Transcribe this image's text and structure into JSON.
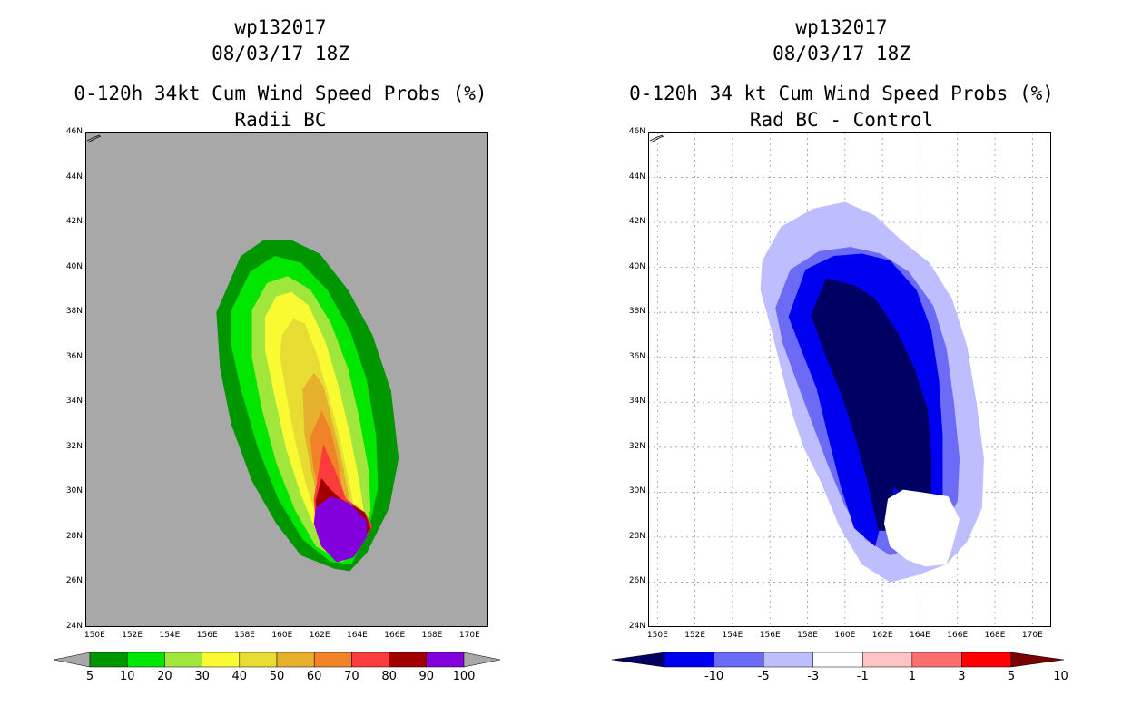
{
  "figure": {
    "left": {
      "title_storm": "wp132017",
      "title_time": "08/03/17 18Z",
      "title_product": "0-120h 34kt Cum Wind Speed Probs (%)",
      "title_sub": "Radii BC",
      "colorbar": {
        "labels": [
          "5",
          "10",
          "20",
          "30",
          "40",
          "50",
          "60",
          "70",
          "80",
          "90",
          "100"
        ],
        "colors": [
          "#009600",
          "#00e600",
          "#a0e63c",
          "#fafa32",
          "#e6dc32",
          "#e6af2d",
          "#f08228",
          "#fa3c3c",
          "#a00000",
          "#8200dc"
        ],
        "end_color": "#a8a8a8"
      }
    },
    "right": {
      "title_storm": "wp132017",
      "title_time": "08/03/17 18Z",
      "title_product": "0-120h 34 kt Cum Wind Speed Probs (%)",
      "title_sub": "Rad BC - Control",
      "colorbar": {
        "labels": [
          "-10",
          "-5",
          "-3",
          "-1",
          "1",
          "3",
          "5",
          "10"
        ],
        "colors": [
          "#0000f0",
          "#6b6bf5",
          "#bebeff",
          "#ffffff",
          "#ffc3c3",
          "#fa6e6e",
          "#ff0000"
        ],
        "low_end_color": "#000064",
        "high_end_color": "#780000"
      }
    }
  },
  "axes": {
    "ytick_labels": [
      "24N",
      "26N",
      "28N",
      "30N",
      "32N",
      "34N",
      "36N",
      "38N",
      "40N",
      "42N",
      "44N",
      "46N"
    ],
    "xtick_labels": [
      "150E",
      "152E",
      "154E",
      "156E",
      "158E",
      "160E",
      "162E",
      "164E",
      "166E",
      "168E",
      "170E"
    ]
  },
  "chart_data": [
    {
      "type": "heatmap",
      "subtype": "filled-contour",
      "title": "0-120h 34kt Cum Wind Speed Probs (%)",
      "subtitle": "Radii BC",
      "xlabel": "",
      "ylabel": "",
      "xlim": [
        149.5,
        171.0
      ],
      "ylim": [
        24,
        46
      ],
      "grid": false,
      "background_color": "#a8a8a8",
      "levels": [
        {
          "min": 5,
          "color": "#009600",
          "polygon": [
            [
              156.5,
              38
            ],
            [
              157.8,
              40.5
            ],
            [
              159,
              41.2
            ],
            [
              160.5,
              41.2
            ],
            [
              162,
              40.6
            ],
            [
              163.5,
              39
            ],
            [
              164.8,
              37
            ],
            [
              165.8,
              34.5
            ],
            [
              166.2,
              31.5
            ],
            [
              165.7,
              29.3
            ],
            [
              164.5,
              27.3
            ],
            [
              163.6,
              26.5
            ],
            [
              162.8,
              26.6
            ],
            [
              161,
              27.2
            ],
            [
              159.7,
              28.6
            ],
            [
              158.4,
              30.5
            ],
            [
              157.3,
              33
            ],
            [
              156.7,
              35.5
            ]
          ]
        },
        {
          "min": 10,
          "color": "#00e600",
          "polygon": [
            [
              157.3,
              38.1
            ],
            [
              158.3,
              39.8
            ],
            [
              159.6,
              40.5
            ],
            [
              161,
              40.2
            ],
            [
              162.4,
              39
            ],
            [
              163.6,
              37.2
            ],
            [
              164.5,
              35
            ],
            [
              165,
              32.5
            ],
            [
              165.1,
              30.2
            ],
            [
              164.6,
              28.3
            ],
            [
              163.7,
              26.8
            ],
            [
              162.6,
              26.9
            ],
            [
              161.1,
              27.9
            ],
            [
              159.8,
              29.7
            ],
            [
              158.7,
              32
            ],
            [
              157.8,
              34.6
            ],
            [
              157.3,
              36.5
            ]
          ]
        },
        {
          "min": 20,
          "color": "#a0e63c",
          "polygon": [
            [
              158.4,
              38.1
            ],
            [
              159.2,
              39.3
            ],
            [
              160.3,
              39.6
            ],
            [
              161.5,
              39
            ],
            [
              162.6,
              37.5
            ],
            [
              163.5,
              35.5
            ],
            [
              164.1,
              33.3
            ],
            [
              164.6,
              31
            ],
            [
              164.7,
              29.2
            ],
            [
              164.1,
              27.5
            ],
            [
              163.2,
              26.9
            ],
            [
              161.8,
              27.6
            ],
            [
              160.7,
              29.2
            ],
            [
              159.7,
              31.3
            ],
            [
              158.9,
              33.8
            ],
            [
              158.4,
              36
            ]
          ]
        },
        {
          "min": 30,
          "color": "#fafa32",
          "polygon": [
            [
              159.1,
              37.8
            ],
            [
              159.7,
              38.7
            ],
            [
              160.5,
              38.9
            ],
            [
              161.4,
              38.3
            ],
            [
              162.3,
              36.7
            ],
            [
              163,
              34.7
            ],
            [
              163.6,
              32.6
            ],
            [
              164.1,
              30.5
            ],
            [
              164.4,
              28.8
            ],
            [
              163.9,
              27.3
            ],
            [
              163,
              27
            ],
            [
              161.9,
              28.1
            ],
            [
              161,
              29.9
            ],
            [
              160.2,
              32
            ],
            [
              159.6,
              34.3
            ],
            [
              159.1,
              36.3
            ]
          ]
        },
        {
          "min": 40,
          "color": "#e6dc32",
          "polygon": [
            [
              160,
              37
            ],
            [
              160.6,
              37.7
            ],
            [
              161.2,
              37.5
            ],
            [
              161.8,
              36.2
            ],
            [
              162.4,
              34.5
            ],
            [
              163,
              32.6
            ],
            [
              163.5,
              30.7
            ],
            [
              163.9,
              29
            ],
            [
              163.6,
              27.5
            ],
            [
              162.9,
              27.1
            ],
            [
              162,
              28.5
            ],
            [
              161.3,
              30.3
            ],
            [
              160.7,
              32.3
            ],
            [
              160.2,
              34.5
            ],
            [
              159.9,
              36
            ]
          ]
        },
        {
          "min": 50,
          "color": "#e6af2d",
          "polygon": [
            [
              161.1,
              34.6
            ],
            [
              161.7,
              35.3
            ],
            [
              162.2,
              34.7
            ],
            [
              162.7,
              33
            ],
            [
              163.2,
              31.3
            ],
            [
              163.6,
              29.6
            ],
            [
              163.3,
              27.8
            ],
            [
              162.7,
              27.6
            ],
            [
              162.1,
              29
            ],
            [
              161.6,
              30.8
            ],
            [
              161.2,
              32.6
            ]
          ]
        },
        {
          "min": 60,
          "color": "#f08228",
          "polygon": [
            [
              161.5,
              32.4
            ],
            [
              162.1,
              33.6
            ],
            [
              162.6,
              32.7
            ],
            [
              163,
              31.2
            ],
            [
              163.3,
              29.6
            ],
            [
              163.1,
              28.2
            ],
            [
              162.6,
              28.3
            ],
            [
              162.1,
              29.6
            ],
            [
              161.7,
              31
            ]
          ]
        },
        {
          "min": 70,
          "color": "#fa3c3c",
          "polygon": [
            [
              161.7,
              29.7
            ],
            [
              162.2,
              32.1
            ],
            [
              162.8,
              31
            ],
            [
              163.4,
              29.7
            ],
            [
              164.4,
              29.1
            ],
            [
              164.8,
              28.5
            ],
            [
              164.2,
              27.6
            ],
            [
              163.3,
              27.1
            ],
            [
              162.3,
              27.7
            ],
            [
              161.8,
              28.6
            ]
          ]
        },
        {
          "min": 80,
          "color": "#a00000",
          "polygon": [
            [
              161.8,
              29.6
            ],
            [
              162.1,
              30.6
            ],
            [
              162.6,
              30.1
            ],
            [
              163.1,
              29.7
            ],
            [
              164.4,
              29.1
            ],
            [
              164.7,
              28.4
            ],
            [
              164,
              27.4
            ],
            [
              163.3,
              27.1
            ],
            [
              162.3,
              27.6
            ],
            [
              161.9,
              28.5
            ]
          ]
        },
        {
          "min": 90,
          "color": "#8200dc",
          "polygon": [
            [
              161.8,
              29.3
            ],
            [
              162.6,
              29.8
            ],
            [
              163.6,
              29.5
            ],
            [
              164.5,
              28.7
            ],
            [
              164.5,
              28
            ],
            [
              163.8,
              27.1
            ],
            [
              162.9,
              26.9
            ],
            [
              162.1,
              27.6
            ],
            [
              161.7,
              28.6
            ]
          ]
        }
      ]
    },
    {
      "type": "heatmap",
      "subtype": "filled-contour",
      "title": "0-120h 34 kt Cum Wind Speed Probs (%)",
      "subtitle": "Rad BC - Control",
      "xlabel": "",
      "ylabel": "",
      "xlim": [
        149.5,
        171.0
      ],
      "ylim": [
        24,
        46
      ],
      "grid": true,
      "background_color": "#ffffff",
      "levels": [
        {
          "range": [
            -3,
            -1
          ],
          "color": "#bebeff",
          "polygon": [
            [
              155.6,
              40.3
            ],
            [
              156.6,
              41.8
            ],
            [
              158.3,
              42.6
            ],
            [
              160,
              42.9
            ],
            [
              161.6,
              42.3
            ],
            [
              163,
              41.2
            ],
            [
              164.5,
              40.2
            ],
            [
              165.7,
              38.6
            ],
            [
              166.5,
              36.5
            ],
            [
              167,
              34
            ],
            [
              167.4,
              31.5
            ],
            [
              167.3,
              29.3
            ],
            [
              166.5,
              27.8
            ],
            [
              165.4,
              26.8
            ],
            [
              163.8,
              26.3
            ],
            [
              162.4,
              26
            ],
            [
              160.9,
              26.8
            ],
            [
              159.7,
              28.5
            ],
            [
              158.7,
              30.5
            ],
            [
              157.8,
              32
            ],
            [
              157.2,
              33.5
            ],
            [
              156.6,
              35.5
            ],
            [
              156,
              37.5
            ],
            [
              155.5,
              39
            ]
          ]
        },
        {
          "range": [
            -5,
            -3
          ],
          "color": "#6b6bf5",
          "polygon": [
            [
              156.3,
              38.2
            ],
            [
              157.1,
              39.9
            ],
            [
              158.6,
              40.7
            ],
            [
              160.3,
              40.9
            ],
            [
              161.9,
              40.6
            ],
            [
              163.4,
              39.8
            ],
            [
              164.7,
              38.3
            ],
            [
              165.4,
              36.4
            ],
            [
              165.8,
              34
            ],
            [
              166.1,
              31.5
            ],
            [
              166,
              29.6
            ],
            [
              165.1,
              28.2
            ],
            [
              163.9,
              27.6
            ],
            [
              162.4,
              27.2
            ],
            [
              161.1,
              27.9
            ],
            [
              160,
              29.4
            ],
            [
              159.1,
              31.2
            ],
            [
              158.2,
              33.2
            ],
            [
              157.4,
              35
            ],
            [
              156.7,
              36.6
            ]
          ]
        },
        {
          "range": [
            -10,
            -5
          ],
          "color": "#0000f0",
          "polygon": [
            [
              157,
              37.8
            ],
            [
              157.9,
              39.9
            ],
            [
              159.4,
              40.5
            ],
            [
              160.9,
              40.6
            ],
            [
              162.4,
              40.3
            ],
            [
              163.8,
              39
            ],
            [
              164.6,
              37.2
            ],
            [
              165,
              35
            ],
            [
              165.2,
              32.5
            ],
            [
              165.2,
              29.8
            ],
            [
              163.9,
              29.8
            ],
            [
              163,
              29.4
            ],
            [
              162,
              28.9
            ],
            [
              161.6,
              27.6
            ],
            [
              160.5,
              28.4
            ],
            [
              159.8,
              30.2
            ],
            [
              159.1,
              32.5
            ],
            [
              158.5,
              34.6
            ],
            [
              157.7,
              36.3
            ]
          ]
        },
        {
          "range": [
            -100,
            -10
          ],
          "color": "#000064",
          "polygon": [
            [
              158.2,
              37.9
            ],
            [
              159,
              39.5
            ],
            [
              160.5,
              39.2
            ],
            [
              161.6,
              38.6
            ],
            [
              162.8,
              37.1
            ],
            [
              163.7,
              35.5
            ],
            [
              164.4,
              33.7
            ],
            [
              164.6,
              31.5
            ],
            [
              164.6,
              29.8
            ],
            [
              163.2,
              29.6
            ],
            [
              162.6,
              30.3
            ],
            [
              162.3,
              28.3
            ],
            [
              161.8,
              28.3
            ],
            [
              161.2,
              30.5
            ],
            [
              160.5,
              32.6
            ],
            [
              159.8,
              34.4
            ],
            [
              159,
              36
            ]
          ]
        },
        {
          "range": [
            -1,
            1
          ],
          "color": "#ffffff",
          "polygon": [
            [
              162.3,
              29.7
            ],
            [
              163.1,
              30.1
            ],
            [
              164,
              30
            ],
            [
              165.5,
              29.8
            ],
            [
              166.1,
              28.8
            ],
            [
              165.7,
              27.5
            ],
            [
              165.4,
              26.8
            ],
            [
              164.3,
              26.7
            ],
            [
              163.3,
              27
            ],
            [
              162.4,
              27.6
            ],
            [
              162.1,
              28.6
            ]
          ]
        }
      ]
    }
  ]
}
